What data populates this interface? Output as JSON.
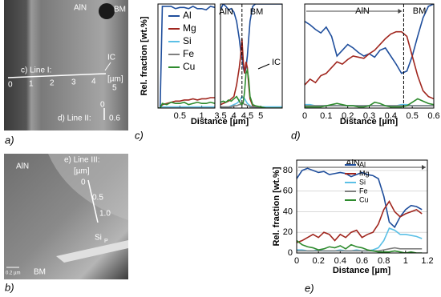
{
  "micrographs": {
    "a": {
      "panel": "a)",
      "labels": [
        "AlN",
        "BM",
        "IC",
        "c) Line I:",
        "[µm]",
        "d) Line II:"
      ],
      "line_I_ticks": [
        "0",
        "1",
        "2",
        "3",
        "4",
        "5"
      ],
      "line_II_ticks": [
        "0",
        "0.6"
      ]
    },
    "b": {
      "panel": "b)",
      "labels": [
        "AlN",
        "e) Line III:",
        "[µm]",
        "BM",
        "0.2 µm"
      ],
      "line_III_ticks": [
        "0",
        "0.5",
        "1.0"
      ],
      "precipitate": "Si",
      "precipitate_sub": "P"
    }
  },
  "chart_data": [
    {
      "type": "line",
      "panel": "c)",
      "y_label": "Rel. fraction [wt.%]",
      "x_label": "Distance [µm]",
      "legend": "upper left",
      "xlim": [
        0,
        1.3
      ],
      "xticks": [
        0.5,
        1
      ],
      "ylim": [
        0,
        90
      ],
      "x": [
        0,
        0.05,
        0.1,
        0.2,
        0.3,
        0.4,
        0.5,
        0.6,
        0.7,
        0.8,
        0.9,
        1.0,
        1.1,
        1.2,
        1.3
      ],
      "series": [
        {
          "name": "Al",
          "color": "#1f4e9c",
          "values": [
            0,
            0,
            88,
            88,
            88,
            86,
            87,
            87,
            86,
            88,
            86,
            86,
            85,
            88,
            87
          ]
        },
        {
          "name": "Mg",
          "color": "#a0261e",
          "values": [
            0,
            0,
            3,
            4,
            5,
            6,
            6,
            7,
            7,
            8,
            7,
            8,
            8,
            9,
            9
          ]
        },
        {
          "name": "Si",
          "color": "#5bc0e6",
          "values": [
            0,
            0,
            1,
            1,
            1,
            1,
            1,
            1,
            1,
            1,
            1,
            1,
            1,
            1,
            1
          ]
        },
        {
          "name": "Fe",
          "color": "#7f7f7f",
          "values": [
            0,
            0,
            0,
            0,
            0,
            0,
            0,
            0,
            0,
            0,
            0,
            0,
            0,
            0,
            0
          ]
        },
        {
          "name": "Cu",
          "color": "#2e8b2e",
          "values": [
            0,
            0,
            4,
            3,
            5,
            4,
            4,
            5,
            3,
            4,
            5,
            4,
            4,
            5,
            4
          ]
        }
      ]
    },
    {
      "type": "line",
      "xlim": [
        3.5,
        5.8
      ],
      "xticks": [
        3.5,
        4,
        4.5,
        5
      ],
      "ylim": [
        0,
        90
      ],
      "region_labels": [
        "AlN",
        "BM"
      ],
      "marker_x": 4.3,
      "callout": "IC",
      "x": [
        3.5,
        3.6,
        3.7,
        3.8,
        3.9,
        4.0,
        4.1,
        4.2,
        4.25,
        4.3,
        4.35,
        4.4,
        4.45,
        4.5,
        4.55,
        4.6,
        4.7,
        4.8,
        5.0,
        5.2,
        5.4,
        5.6,
        5.8
      ],
      "series": [
        {
          "color": "#1f4e9c",
          "values": [
            85,
            90,
            88,
            85,
            86,
            83,
            75,
            60,
            50,
            45,
            35,
            30,
            35,
            45,
            60,
            75,
            88,
            90,
            90,
            90,
            90,
            90,
            90
          ]
        },
        {
          "color": "#a0261e",
          "values": [
            3,
            4,
            5,
            6,
            8,
            10,
            20,
            35,
            45,
            60,
            40,
            30,
            40,
            35,
            20,
            8,
            2,
            1,
            0,
            0,
            0,
            0,
            0
          ]
        },
        {
          "color": "#5bc0e6",
          "values": [
            1,
            1,
            1,
            1,
            2,
            3,
            4,
            6,
            8,
            10,
            9,
            8,
            6,
            4,
            3,
            2,
            1,
            1,
            1,
            1,
            1,
            1,
            1
          ]
        },
        {
          "color": "#7f7f7f",
          "values": [
            1,
            1,
            1,
            1,
            1,
            2,
            2,
            3,
            3,
            4,
            4,
            3,
            3,
            2,
            2,
            1,
            1,
            1,
            0,
            0,
            0,
            0,
            0
          ]
        },
        {
          "color": "#2e8b2e",
          "values": [
            5,
            6,
            5,
            7,
            6,
            8,
            10,
            6,
            4,
            3,
            5,
            15,
            30,
            33,
            25,
            10,
            3,
            2,
            1,
            0,
            0,
            0,
            0
          ]
        }
      ]
    },
    {
      "type": "line",
      "panel": "d)",
      "x_label": "Distance [µm]",
      "xlim": [
        0,
        0.6
      ],
      "xticks": [
        0,
        0.1,
        0.2,
        0.3,
        0.4,
        0.5,
        0.6
      ],
      "ylim": [
        0,
        90
      ],
      "region_labels": [
        "AlN",
        "BM"
      ],
      "marker_x": 0.46,
      "x": [
        0,
        0.025,
        0.05,
        0.075,
        0.1,
        0.125,
        0.15,
        0.175,
        0.2,
        0.225,
        0.25,
        0.275,
        0.3,
        0.325,
        0.35,
        0.375,
        0.4,
        0.425,
        0.45,
        0.475,
        0.5,
        0.525,
        0.55,
        0.575,
        0.6
      ],
      "series": [
        {
          "color": "#1f4e9c",
          "values": [
            75,
            72,
            68,
            65,
            70,
            62,
            45,
            50,
            55,
            52,
            48,
            45,
            47,
            44,
            50,
            52,
            45,
            38,
            30,
            32,
            45,
            62,
            78,
            88,
            90
          ]
        },
        {
          "color": "#a0261e",
          "values": [
            20,
            25,
            22,
            28,
            30,
            35,
            40,
            38,
            42,
            45,
            44,
            43,
            47,
            50,
            55,
            60,
            64,
            66,
            66,
            62,
            45,
            28,
            15,
            10,
            8
          ]
        },
        {
          "color": "#5bc0e6",
          "values": [
            3,
            3,
            2,
            2,
            2,
            2,
            2,
            2,
            2,
            2,
            2,
            2,
            2,
            2,
            2,
            2,
            2,
            2,
            3,
            3,
            2,
            2,
            2,
            2,
            2
          ]
        },
        {
          "color": "#7f7f7f",
          "values": [
            2,
            2,
            2,
            2,
            2,
            2,
            2,
            2,
            2,
            2,
            2,
            2,
            2,
            2,
            2,
            2,
            2,
            2,
            2,
            2,
            2,
            2,
            2,
            2,
            2
          ]
        },
        {
          "color": "#2e8b2e",
          "values": [
            1,
            1,
            1,
            1,
            2,
            3,
            4,
            3,
            2,
            2,
            1,
            1,
            2,
            5,
            4,
            2,
            1,
            1,
            1,
            2,
            5,
            8,
            6,
            4,
            3
          ]
        }
      ]
    },
    {
      "type": "line",
      "panel": "e)",
      "y_label": "Rel. fraction [wt.%]",
      "x_label": "Distance [µm]",
      "legend": "upper right",
      "grid": true,
      "xlim": [
        0,
        1.2
      ],
      "xticks": [
        0,
        0.2,
        0.4,
        0.6,
        0.8,
        1,
        1.2
      ],
      "ylim": [
        0,
        90
      ],
      "yticks": [
        0,
        20,
        40,
        60,
        80
      ],
      "region_labels": [
        "AlN"
      ],
      "x": [
        0,
        0.05,
        0.1,
        0.15,
        0.2,
        0.25,
        0.3,
        0.35,
        0.4,
        0.45,
        0.5,
        0.55,
        0.6,
        0.65,
        0.7,
        0.75,
        0.8,
        0.85,
        0.9,
        0.95,
        1.0,
        1.05,
        1.1,
        1.15
      ],
      "series": [
        {
          "name": "Al",
          "color": "#1f4e9c",
          "values": [
            72,
            80,
            82,
            80,
            78,
            79,
            76,
            77,
            78,
            77,
            74,
            76,
            78,
            76,
            75,
            72,
            55,
            30,
            25,
            35,
            42,
            46,
            45,
            42
          ]
        },
        {
          "name": "Mg",
          "color": "#a0261e",
          "values": [
            10,
            12,
            15,
            18,
            15,
            20,
            18,
            12,
            18,
            15,
            20,
            22,
            15,
            18,
            20,
            28,
            42,
            50,
            40,
            35,
            38,
            40,
            42,
            38
          ]
        },
        {
          "name": "Si",
          "color": "#5bc0e6",
          "values": [
            3,
            3,
            2,
            2,
            3,
            2,
            2,
            2,
            3,
            2,
            2,
            3,
            2,
            2,
            3,
            5,
            12,
            24,
            22,
            18,
            18,
            17,
            16,
            14
          ]
        },
        {
          "name": "Fe",
          "color": "#7f7f7f",
          "values": [
            2,
            2,
            2,
            2,
            2,
            2,
            2,
            2,
            2,
            2,
            2,
            2,
            2,
            2,
            2,
            2,
            3,
            4,
            5,
            4,
            4,
            4,
            4,
            4
          ]
        },
        {
          "name": "Cu",
          "color": "#2e8b2e",
          "values": [
            12,
            8,
            6,
            5,
            3,
            4,
            6,
            5,
            7,
            4,
            8,
            6,
            5,
            3,
            2,
            1,
            1,
            1,
            2,
            1,
            0,
            1,
            0,
            0
          ]
        }
      ]
    }
  ]
}
